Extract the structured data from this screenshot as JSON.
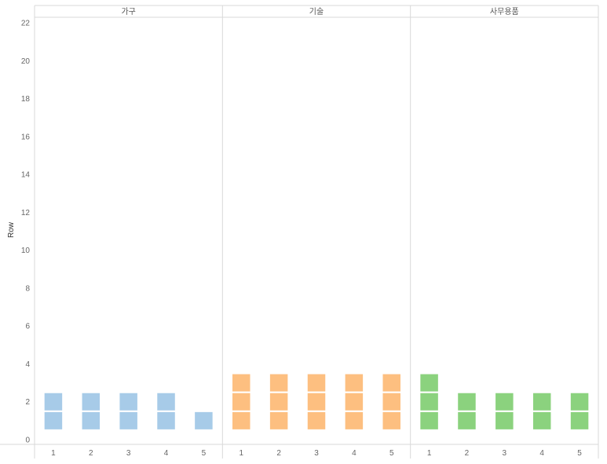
{
  "chart_data": {
    "type": "bar",
    "ylabel": "Row",
    "ylim": [
      0,
      22
    ],
    "yticks": [
      0,
      2,
      4,
      6,
      8,
      10,
      12,
      14,
      16,
      18,
      20,
      22
    ],
    "grid": false,
    "panels": [
      {
        "title": "가구",
        "color": "#a7cbe8",
        "categories": [
          "1",
          "2",
          "3",
          "4",
          "5"
        ],
        "values": [
          2,
          2,
          2,
          2,
          1
        ]
      },
      {
        "title": "기술",
        "color": "#fdbf80",
        "categories": [
          "1",
          "2",
          "3",
          "4",
          "5"
        ],
        "values": [
          3,
          3,
          3,
          3,
          3
        ]
      },
      {
        "title": "사무용품",
        "color": "#8bd27e",
        "categories": [
          "1",
          "2",
          "3",
          "4",
          "5"
        ],
        "values": [
          3,
          2,
          2,
          2,
          2
        ]
      }
    ]
  }
}
